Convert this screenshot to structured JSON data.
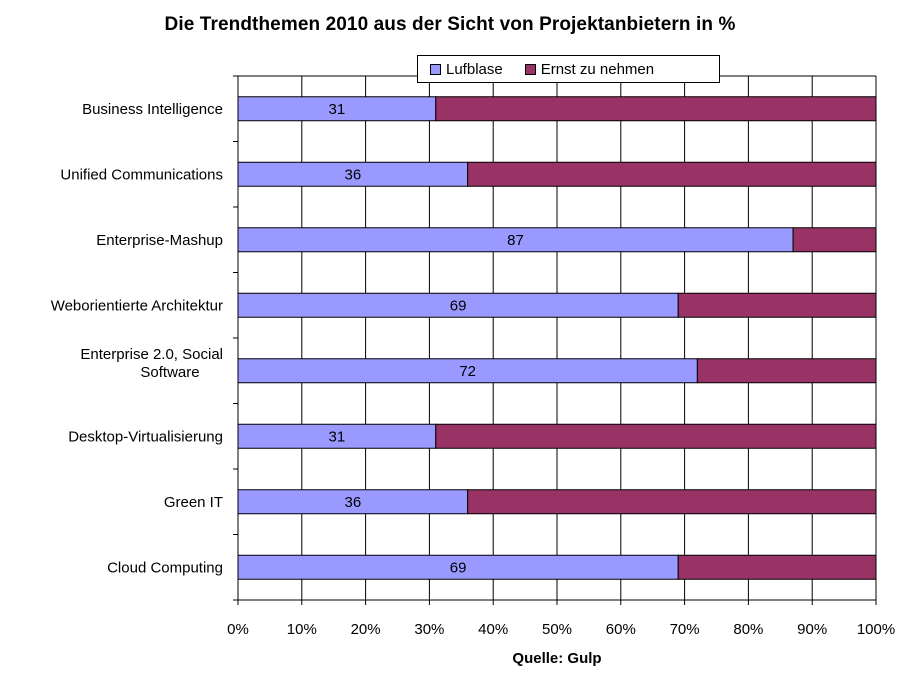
{
  "chart_data": {
    "type": "bar",
    "orientation": "horizontal",
    "stacked": true,
    "title": "Die Trendthemen 2010 aus der Sicht von Projektanbietern in %",
    "categories": [
      "Business Intelligence",
      "Unified Communications",
      "Enterprise-Mashup",
      "Weborientierte Architektur",
      "Enterprise 2.0, Social Software",
      "Desktop-Virtualisierung",
      "Green IT",
      "Cloud Computing"
    ],
    "series": [
      {
        "name": "Lufblase",
        "color": "#9999ff",
        "values": [
          31,
          36,
          87,
          69,
          72,
          31,
          36,
          69
        ]
      },
      {
        "name": "Ernst zu nehmen",
        "color": "#993366",
        "values": [
          69,
          64,
          13,
          31,
          28,
          69,
          64,
          31
        ]
      }
    ],
    "data_labels": [
      "31",
      "36",
      "87",
      "69",
      "72",
      "31",
      "36",
      "69"
    ],
    "xlim": [
      0,
      100
    ],
    "x_ticks": [
      "0%",
      "10%",
      "20%",
      "30%",
      "40%",
      "50%",
      "60%",
      "70%",
      "80%",
      "90%",
      "100%"
    ],
    "grid": true,
    "legend_position": "top",
    "source": "Quelle: Gulp"
  }
}
